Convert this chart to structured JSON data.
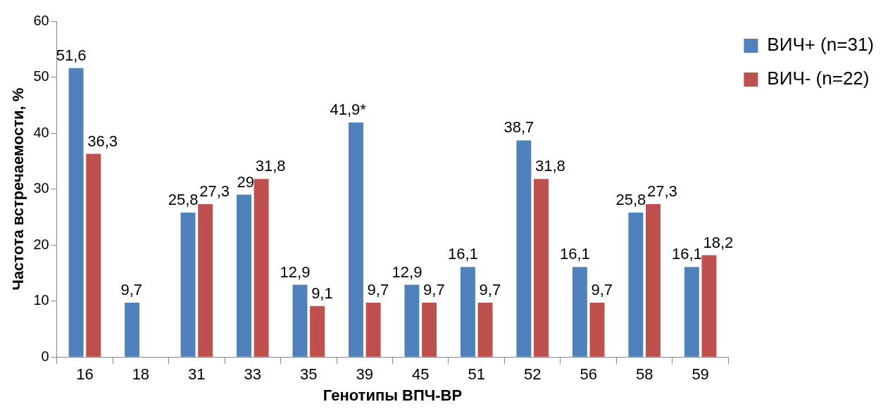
{
  "chart_data": {
    "type": "bar",
    "xlabel": "Генотипы ВПЧ-ВР",
    "ylabel": "Частота встречаемости, %",
    "categories": [
      "16",
      "18",
      "31",
      "33",
      "35",
      "39",
      "45",
      "51",
      "52",
      "56",
      "58",
      "59"
    ],
    "ylim": [
      0,
      60
    ],
    "yticks": [
      0,
      10,
      20,
      30,
      40,
      50,
      60
    ],
    "legend": "top right",
    "series": [
      {
        "name": "ВИЧ+ (n=31)",
        "color": "#4f81bd",
        "values": [
          51.6,
          9.7,
          25.8,
          29,
          12.9,
          41.9,
          12.9,
          16.1,
          38.7,
          16.1,
          25.8,
          16.1
        ],
        "value_labels": [
          "51,6",
          "9,7",
          "25,8",
          "29",
          "12,9",
          "41,9*",
          "12,9",
          "16,1",
          "38,7",
          "16,1",
          "25,8",
          "16,1"
        ]
      },
      {
        "name": "ВИЧ- (n=22)",
        "color": "#c0504d",
        "values": [
          36.3,
          null,
          27.3,
          31.8,
          9.1,
          9.7,
          9.7,
          9.7,
          31.8,
          9.7,
          27.3,
          18.2
        ],
        "value_labels": [
          "36,3",
          null,
          "27,3",
          "31,8",
          "9,1",
          "9,7",
          "9,7",
          "9,7",
          "31,8",
          "9,7",
          "27,3",
          "18,2"
        ]
      }
    ]
  }
}
